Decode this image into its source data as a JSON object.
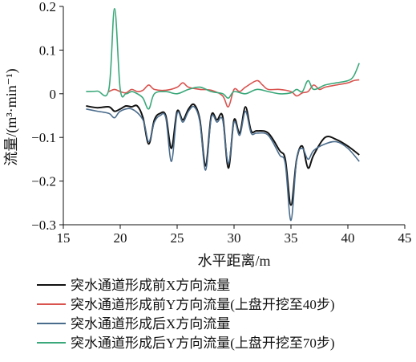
{
  "chart_data": {
    "type": "line",
    "xlabel": "水平距离/m",
    "ylabel": "流量/(m³·min⁻¹)",
    "xlim": [
      15,
      45
    ],
    "ylim": [
      -0.3,
      0.2
    ],
    "xticks": [
      15,
      20,
      25,
      30,
      35,
      40,
      45
    ],
    "yticks": [
      -0.3,
      -0.2,
      -0.1,
      0,
      0.1,
      0.2
    ],
    "xtick_labels": [
      "15",
      "20",
      "25",
      "30",
      "35",
      "40",
      "45"
    ],
    "ytick_labels": [
      "−0.3",
      "−0.2",
      "−0.1",
      "0",
      "0.1",
      "0.2"
    ],
    "grid": false,
    "legend_position": "bottom",
    "series": [
      {
        "name": "突水通道形成前X方向流量",
        "color": "#111111",
        "points": [
          [
            17,
            -0.028
          ],
          [
            18,
            -0.032
          ],
          [
            19,
            -0.03
          ],
          [
            19.5,
            -0.04
          ],
          [
            20,
            -0.035
          ],
          [
            20.5,
            -0.028
          ],
          [
            21,
            -0.03
          ],
          [
            21.5,
            -0.028
          ],
          [
            22,
            -0.055
          ],
          [
            22.5,
            -0.115
          ],
          [
            23,
            -0.06
          ],
          [
            23.5,
            -0.045
          ],
          [
            24,
            -0.05
          ],
          [
            24.5,
            -0.125
          ],
          [
            25,
            -0.04
          ],
          [
            25.5,
            -0.06
          ],
          [
            26,
            -0.035
          ],
          [
            26.5,
            -0.025
          ],
          [
            27,
            -0.06
          ],
          [
            27.5,
            -0.165
          ],
          [
            28,
            -0.05
          ],
          [
            28.5,
            -0.06
          ],
          [
            29,
            -0.052
          ],
          [
            29.5,
            -0.17
          ],
          [
            30,
            -0.06
          ],
          [
            30.5,
            -0.09
          ],
          [
            31,
            -0.03
          ],
          [
            31.5,
            -0.085
          ],
          [
            32,
            -0.085
          ],
          [
            33,
            -0.09
          ],
          [
            34,
            -0.13
          ],
          [
            34.5,
            -0.15
          ],
          [
            35,
            -0.255
          ],
          [
            35.5,
            -0.15
          ],
          [
            36,
            -0.12
          ],
          [
            36.5,
            -0.17
          ],
          [
            37,
            -0.14
          ],
          [
            38,
            -0.1
          ],
          [
            39,
            -0.105
          ],
          [
            40,
            -0.12
          ],
          [
            41,
            -0.14
          ]
        ]
      },
      {
        "name": "突水通道形成前Y方向流量(上盘开挖至40步)",
        "color": "#d9534f",
        "points": [
          [
            19,
            0.005
          ],
          [
            19.5,
            0.01
          ],
          [
            20,
            0.005
          ],
          [
            20.5,
            0.002
          ],
          [
            21,
            0.01
          ],
          [
            21.5,
            0.005
          ],
          [
            22,
            0.008
          ],
          [
            22.5,
            0.02
          ],
          [
            23,
            0.01
          ],
          [
            24,
            0.008
          ],
          [
            25,
            0.015
          ],
          [
            25.5,
            0.025
          ],
          [
            26,
            0.015
          ],
          [
            27,
            0.01
          ],
          [
            28,
            0.008
          ],
          [
            29,
            -0.005
          ],
          [
            29.5,
            -0.03
          ],
          [
            30,
            0.01
          ],
          [
            30.5,
            0.005
          ],
          [
            31,
            0.015
          ],
          [
            32,
            0.03
          ],
          [
            32.5,
            0.02
          ],
          [
            33,
            0.01
          ],
          [
            34,
            0.01
          ],
          [
            35,
            0.005
          ],
          [
            35.5,
            -0.005
          ],
          [
            36,
            0.002
          ],
          [
            36.5,
            0.005
          ],
          [
            37,
            0.02
          ],
          [
            37.5,
            0.01
          ],
          [
            38,
            0.015
          ],
          [
            39,
            0.02
          ],
          [
            40,
            0.025
          ],
          [
            40.5,
            0.03
          ],
          [
            41,
            0.032
          ]
        ]
      },
      {
        "name": "突水通道形成后X方向流量",
        "color": "#4a6c8c",
        "points": [
          [
            17,
            -0.035
          ],
          [
            18,
            -0.04
          ],
          [
            19,
            -0.045
          ],
          [
            19.5,
            -0.055
          ],
          [
            20,
            -0.04
          ],
          [
            21,
            -0.035
          ],
          [
            22,
            -0.06
          ],
          [
            22.5,
            -0.11
          ],
          [
            23,
            -0.065
          ],
          [
            23.5,
            -0.05
          ],
          [
            24,
            -0.055
          ],
          [
            24.5,
            -0.155
          ],
          [
            25,
            -0.045
          ],
          [
            25.5,
            -0.065
          ],
          [
            26,
            -0.04
          ],
          [
            26.5,
            -0.03
          ],
          [
            27,
            -0.065
          ],
          [
            27.5,
            -0.175
          ],
          [
            28,
            -0.055
          ],
          [
            28.5,
            -0.065
          ],
          [
            29,
            -0.06
          ],
          [
            29.5,
            -0.16
          ],
          [
            30,
            -0.065
          ],
          [
            30.5,
            -0.095
          ],
          [
            31,
            -0.04
          ],
          [
            31.5,
            -0.09
          ],
          [
            32,
            -0.09
          ],
          [
            33,
            -0.095
          ],
          [
            34,
            -0.14
          ],
          [
            34.5,
            -0.16
          ],
          [
            35,
            -0.29
          ],
          [
            35.5,
            -0.15
          ],
          [
            36,
            -0.125
          ],
          [
            36.5,
            -0.15
          ],
          [
            37,
            -0.13
          ],
          [
            38,
            -0.115
          ],
          [
            39,
            -0.11
          ],
          [
            40,
            -0.125
          ],
          [
            41,
            -0.155
          ]
        ]
      },
      {
        "name": "突水通道形成后Y方向流量(上盘开挖至70步)",
        "color": "#3aa87a",
        "points": [
          [
            17,
            0.005
          ],
          [
            18,
            0.006
          ],
          [
            19,
            0.01
          ],
          [
            19.5,
            0.195
          ],
          [
            20,
            0.01
          ],
          [
            20.5,
            0.0
          ],
          [
            21,
            0.005
          ],
          [
            21.5,
            0.0
          ],
          [
            22,
            -0.01
          ],
          [
            22.5,
            -0.035
          ],
          [
            23,
            0.0
          ],
          [
            24,
            0.005
          ],
          [
            25,
            0.0
          ],
          [
            26,
            0.01
          ],
          [
            27,
            0.015
          ],
          [
            28,
            0.005
          ],
          [
            29,
            0.0
          ],
          [
            29.5,
            -0.01
          ],
          [
            30,
            0.005
          ],
          [
            31,
            0.0
          ],
          [
            32,
            0.01
          ],
          [
            33,
            0.005
          ],
          [
            34,
            0.0
          ],
          [
            35,
            0.002
          ],
          [
            35.5,
            0.01
          ],
          [
            36,
            0.005
          ],
          [
            36.5,
            0.03
          ],
          [
            37,
            0.01
          ],
          [
            38,
            0.02
          ],
          [
            39,
            0.025
          ],
          [
            40,
            0.03
          ],
          [
            40.5,
            0.04
          ],
          [
            41,
            0.07
          ]
        ]
      }
    ]
  }
}
